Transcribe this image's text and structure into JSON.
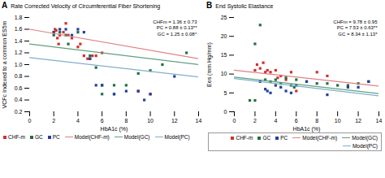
{
  "chart_data": [
    {
      "type": "scatter",
      "label": "A",
      "title": "Rate Corrected Velocity of Circumferential Fiber Shortening",
      "xlabel": "HbA1c (%)",
      "ylabel": "VCFc Indexed to a common ES5m",
      "annotation": "CHFm = 1.36 ± 0.73\nPC = 0.88 ± 0.13**\nGC = 1.25 ± 0.08^",
      "xlim": [
        0,
        14
      ],
      "ylim": [
        0.2,
        1.8
      ],
      "xticks": [
        0,
        2,
        4,
        6,
        8,
        10,
        12,
        14
      ],
      "yticks": [
        0.2,
        0.4,
        0.6,
        0.8,
        {
          "value": 1.0,
          "label": "1.0"
        },
        1.2,
        1.4,
        1.6,
        1.8
      ],
      "legend": "lower left",
      "series": [
        {
          "name": "CHF-m",
          "type": "scatter",
          "marker": "square",
          "color": "#d03030",
          "x": [
            2.0,
            2.1,
            2.2,
            2.3,
            2.4,
            2.5,
            2.8,
            3.0,
            3.2,
            3.5,
            4.0,
            4.2,
            4.5,
            4.8,
            5.0,
            5.2,
            5.5,
            6.0,
            9.0,
            10.0
          ],
          "values": [
            1.55,
            1.6,
            1.58,
            1.45,
            1.35,
            1.5,
            1.55,
            1.7,
            1.5,
            1.45,
            1.3,
            1.35,
            1.15,
            1.1,
            1.1,
            1.15,
            1.15,
            1.2,
            0.55,
            0.5
          ]
        },
        {
          "name": "GC",
          "type": "scatter",
          "marker": "square",
          "color": "#207040",
          "x": [
            2.0,
            2.5,
            3.0,
            3.2,
            4.0,
            5.0,
            5.5,
            6.0,
            7.0,
            8.0,
            9.0,
            10.0,
            11.0,
            13.0,
            6.0,
            7.0
          ],
          "values": [
            1.5,
            1.55,
            1.5,
            1.35,
            1.55,
            1.15,
            0.95,
            0.65,
            0.65,
            0.65,
            0.85,
            0.9,
            1.0,
            1.2,
            0.5,
            0.5
          ]
        },
        {
          "name": "PC",
          "type": "scatter",
          "marker": "square",
          "color": "#2040a0",
          "x": [
            2.0,
            2.5,
            3.0,
            3.5,
            4.0,
            4.5,
            5.0,
            6.0,
            7.0,
            8.0,
            9.0,
            9.5,
            10.0,
            12.0,
            5.5
          ],
          "values": [
            1.55,
            1.6,
            1.6,
            1.5,
            1.6,
            1.55,
            1.1,
            0.65,
            0.5,
            0.55,
            0.55,
            0.4,
            0.5,
            0.8,
            0.65
          ]
        },
        {
          "name": "Model(CHF-m)",
          "type": "line",
          "line_style": "solid",
          "color": "#e08080",
          "x": [
            0,
            14
          ],
          "values": [
            1.6,
            1.1
          ]
        },
        {
          "name": "Model(GC)",
          "type": "line",
          "line_style": "solid",
          "color": "#60a080",
          "x": [
            0,
            14
          ],
          "values": [
            1.35,
            1.0
          ]
        },
        {
          "name": "Model(PC)",
          "type": "line",
          "line_style": "solid",
          "color": "#80b0c8",
          "x": [
            0,
            14
          ],
          "values": [
            1.12,
            0.79
          ]
        }
      ]
    },
    {
      "type": "scatter",
      "label": "B",
      "title": "End Systolic Elastance",
      "xlabel": "HbA1c (%)",
      "ylabel": "Ees (mm Hg/mm)",
      "annotation": "CHFm = 9.78 ± 0.95\nPC = 7.53 ± 0.63**\nGC = 8.34 ± 1.13*",
      "xlim": [
        0,
        14
      ],
      "ylim": [
        0,
        25
      ],
      "xticks": [
        0,
        2,
        4,
        6,
        8,
        10,
        12,
        14
      ],
      "yticks": [
        0,
        5,
        10,
        15,
        20,
        25
      ],
      "legend": "lower right",
      "series": [
        {
          "name": "CHF-m",
          "type": "scatter",
          "marker": "square",
          "color": "#d03030",
          "x": [
            2.0,
            2.2,
            2.5,
            2.8,
            3.0,
            3.2,
            3.5,
            4.0,
            4.2,
            4.5,
            5.0,
            5.5,
            6.0,
            8.0,
            9.0
          ],
          "values": [
            11.0,
            12.5,
            11.5,
            13.0,
            10.5,
            11.0,
            10.5,
            11.0,
            9.0,
            9.5,
            8.5,
            10.5,
            5.5,
            10.5,
            9.5
          ]
        },
        {
          "name": "GC",
          "type": "scatter",
          "marker": "square",
          "color": "#207040",
          "x": [
            2.0,
            2.5,
            3.0,
            3.5,
            4.0,
            4.5,
            5.0,
            5.5,
            5.8,
            6.0,
            7.0,
            8.0,
            9.0,
            10.0,
            11.0,
            12.0,
            13.0,
            1.5,
            2.0
          ],
          "values": [
            18.0,
            23.0,
            8.5,
            8.0,
            8.5,
            7.5,
            9.0,
            7.0,
            6.5,
            8.5,
            8.0,
            7.5,
            7.5,
            7.0,
            7.0,
            7.5,
            8.0,
            3.0,
            3.0
          ]
        },
        {
          "name": "PC",
          "type": "scatter",
          "marker": "square",
          "color": "#2040a0",
          "x": [
            2.5,
            3.0,
            3.2,
            3.5,
            4.0,
            4.5,
            5.0,
            5.5,
            6.0,
            7.0,
            9.0,
            11.0,
            12.0,
            13.0
          ],
          "values": [
            8.0,
            6.0,
            5.5,
            5.0,
            7.0,
            6.5,
            5.5,
            5.0,
            7.0,
            8.0,
            4.5,
            6.5,
            6.5,
            8.0
          ]
        },
        {
          "name": "Model(CHF-m)",
          "type": "line",
          "line_style": "solid",
          "color": "#e08080",
          "x": [
            0,
            14
          ],
          "values": [
            11.0,
            6.8
          ]
        },
        {
          "name": "Model(GC)",
          "type": "line",
          "line_style": "solid",
          "color": "#60a080",
          "x": [
            0,
            14
          ],
          "values": [
            9.2,
            4.8
          ]
        },
        {
          "name": "Model(PC)",
          "type": "line",
          "line_style": "solid",
          "color": "#80b0c8",
          "x": [
            0,
            14
          ],
          "values": [
            8.8,
            4.2
          ]
        }
      ]
    }
  ]
}
